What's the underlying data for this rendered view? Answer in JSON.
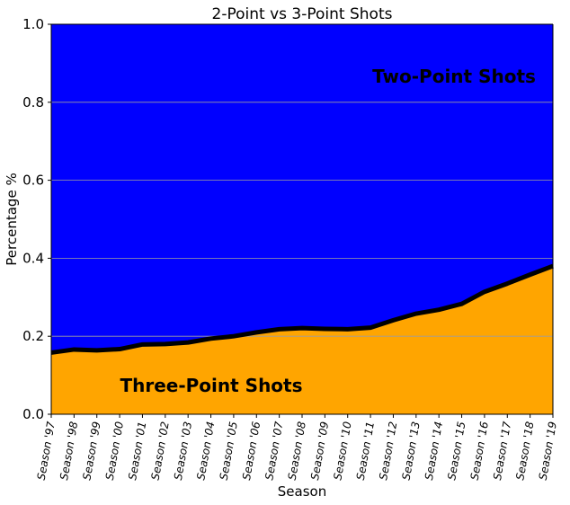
{
  "chart_data": {
    "type": "area",
    "title": "2-Point vs 3-Point Shots",
    "xlabel": "Season",
    "ylabel": "Percentage %",
    "ylim": [
      0,
      1.0
    ],
    "yticks": [
      "0.0",
      "0.2",
      "0.4",
      "0.6",
      "0.8",
      "1.0"
    ],
    "grid": true,
    "categories": [
      "Season '97",
      "Season '98",
      "Season '99",
      "Season '00",
      "Season '01",
      "Season '02",
      "Season '03",
      "Season '04",
      "Season '05",
      "Season '06",
      "Season '07",
      "Season '08",
      "Season '09",
      "Season '10",
      "Season '11",
      "Season '12",
      "Season '13",
      "Season '14",
      "Season '15",
      "Season '16",
      "Season '17",
      "Season '18",
      "Season '19"
    ],
    "series": [
      {
        "name": "Three-Point Shots",
        "color": "#ffa500",
        "values": [
          0.158,
          0.166,
          0.164,
          0.167,
          0.179,
          0.18,
          0.184,
          0.194,
          0.2,
          0.21,
          0.218,
          0.221,
          0.219,
          0.218,
          0.222,
          0.241,
          0.258,
          0.268,
          0.283,
          0.314,
          0.335,
          0.358,
          0.38
        ]
      },
      {
        "name": "Two-Point Shots",
        "color": "#0000ff",
        "values": [
          0.842,
          0.834,
          0.836,
          0.833,
          0.821,
          0.82,
          0.816,
          0.806,
          0.8,
          0.79,
          0.782,
          0.779,
          0.781,
          0.782,
          0.778,
          0.759,
          0.742,
          0.732,
          0.717,
          0.686,
          0.665,
          0.642,
          0.62
        ]
      }
    ],
    "boundary_line_color": "#000000"
  }
}
